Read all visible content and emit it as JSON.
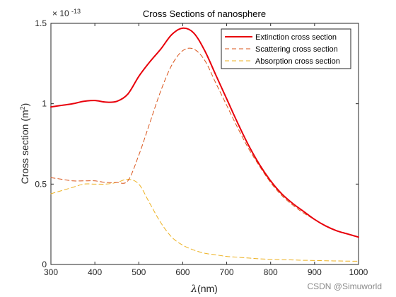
{
  "chart_data": {
    "type": "line",
    "title": "Cross Sections of nanosphere",
    "xlabel_symbol": "λ",
    "xlabel_rest": "(nm)",
    "ylabel_main": "Cross section (m",
    "ylabel_sup": "2",
    "ylabel_close": ")",
    "exponent_base": "× 10",
    "exponent_power": "-13",
    "xlim": [
      300,
      1000
    ],
    "ylim": [
      0,
      1.5
    ],
    "xticks": [
      300,
      400,
      500,
      600,
      700,
      800,
      900,
      1000
    ],
    "xtick_labels": [
      "300",
      "400",
      "500",
      "600",
      "700",
      "800",
      "900",
      "1000"
    ],
    "yticks": [
      0,
      0.5,
      1,
      1.5
    ],
    "ytick_labels": [
      "0",
      "0.5",
      "1",
      "1.5"
    ],
    "grid": false,
    "legend_position": "top-right",
    "series": [
      {
        "name": "Extinction cross section",
        "color": "#e8000b",
        "style": "solid",
        "x": [
          300,
          325,
          350,
          375,
          400,
          425,
          450,
          475,
          500,
          525,
          550,
          575,
          600,
          625,
          650,
          675,
          700,
          725,
          750,
          775,
          800,
          825,
          850,
          875,
          900,
          925,
          950,
          975,
          1000
        ],
        "y": [
          0.98,
          0.99,
          1.0,
          1.015,
          1.02,
          1.01,
          1.015,
          1.06,
          1.17,
          1.26,
          1.34,
          1.43,
          1.47,
          1.44,
          1.33,
          1.18,
          1.03,
          0.88,
          0.74,
          0.62,
          0.52,
          0.44,
          0.38,
          0.33,
          0.28,
          0.24,
          0.21,
          0.19,
          0.17
        ]
      },
      {
        "name": "Scattering cross section",
        "color": "#d95319",
        "style": "dashed",
        "x": [
          300,
          325,
          350,
          375,
          400,
          425,
          450,
          475,
          500,
          525,
          550,
          575,
          600,
          625,
          650,
          675,
          700,
          725,
          750,
          775,
          800,
          825,
          850,
          875,
          900,
          925,
          950,
          975,
          1000
        ],
        "y": [
          0.54,
          0.53,
          0.52,
          0.52,
          0.52,
          0.51,
          0.51,
          0.52,
          0.68,
          0.88,
          1.08,
          1.24,
          1.33,
          1.34,
          1.27,
          1.13,
          0.99,
          0.85,
          0.72,
          0.61,
          0.51,
          0.43,
          0.37,
          0.32,
          0.28,
          0.24,
          0.21,
          0.19,
          0.17
        ]
      },
      {
        "name": "Absorption cross section",
        "color": "#edb120",
        "style": "dashed",
        "x": [
          300,
          325,
          350,
          375,
          400,
          425,
          450,
          475,
          500,
          525,
          550,
          575,
          600,
          625,
          650,
          675,
          700,
          725,
          750,
          775,
          800,
          825,
          850,
          875,
          900,
          925,
          950,
          975,
          1000
        ],
        "y": [
          0.44,
          0.46,
          0.48,
          0.5,
          0.5,
          0.5,
          0.51,
          0.53,
          0.5,
          0.38,
          0.26,
          0.17,
          0.12,
          0.09,
          0.07,
          0.06,
          0.05,
          0.045,
          0.04,
          0.035,
          0.032,
          0.03,
          0.028,
          0.026,
          0.025,
          0.023,
          0.022,
          0.021,
          0.02
        ]
      }
    ]
  },
  "watermark": "CSDN @Simuworld"
}
